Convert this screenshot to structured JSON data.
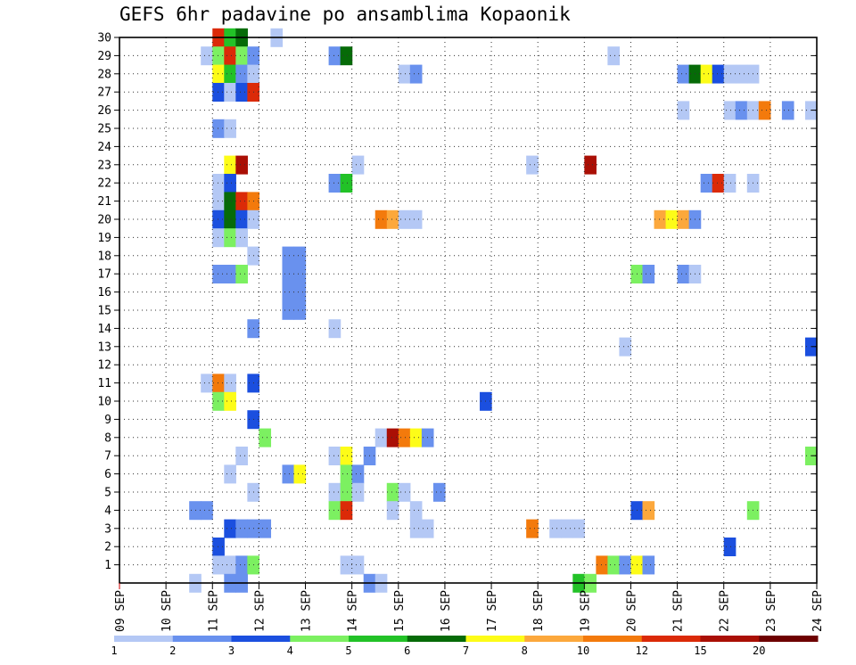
{
  "chart_data": {
    "type": "heatmap",
    "title": "GEFS 6hr padavine po ansamblima Kopaonik",
    "xlabel": "",
    "ylabel": "",
    "x_tick_labels": [
      "09 SEP",
      "10 SEP",
      "11 SEP",
      "12 SEP",
      "13 SEP",
      "14 SEP",
      "15 SEP",
      "16 SEP",
      "17 SEP",
      "18 SEP",
      "19 SEP",
      "20 SEP",
      "21 SEP",
      "22 SEP",
      "23 SEP",
      "24 SEP"
    ],
    "x_unit": "6h step",
    "xlim": [
      0,
      60
    ],
    "y_tick_labels": [
      "1",
      "2",
      "3",
      "4",
      "5",
      "6",
      "7",
      "8",
      "9",
      "10",
      "11",
      "12",
      "13",
      "14",
      "15",
      "16",
      "17",
      "18",
      "19",
      "20",
      "21",
      "22",
      "23",
      "24",
      "25",
      "26",
      "27",
      "28",
      "29",
      "30"
    ],
    "ylim": [
      0,
      30
    ],
    "grid": "dotted",
    "colorbar": {
      "boundaries": [
        1,
        2,
        3,
        4,
        5,
        6,
        7,
        8,
        10,
        12,
        15,
        20
      ],
      "labels": [
        "1",
        "2",
        "3",
        "4",
        "5",
        "6",
        "7",
        "8",
        "10",
        "12",
        "15",
        "20"
      ],
      "colors": [
        "#b4c8f5",
        "#6991ee",
        "#1b4fdf",
        "#7cf061",
        "#22c227",
        "#066b08",
        "#fdfc18",
        "#fca83c",
        "#f37a0c",
        "#db2a08",
        "#aa0f05",
        "#6e0000"
      ]
    },
    "cells": [
      {
        "x": 8,
        "y": 30,
        "v": 12
      },
      {
        "x": 9,
        "y": 30,
        "v": 5
      },
      {
        "x": 10,
        "y": 30,
        "v": 6
      },
      {
        "x": 13,
        "y": 30,
        "v": 1
      },
      {
        "x": 7,
        "y": 29,
        "v": 1
      },
      {
        "x": 8,
        "y": 29,
        "v": 4
      },
      {
        "x": 9,
        "y": 29,
        "v": 12
      },
      {
        "x": 10,
        "y": 29,
        "v": 4
      },
      {
        "x": 11,
        "y": 29,
        "v": 2
      },
      {
        "x": 18,
        "y": 29,
        "v": 2
      },
      {
        "x": 19,
        "y": 29,
        "v": 6
      },
      {
        "x": 42,
        "y": 29,
        "v": 1
      },
      {
        "x": 8,
        "y": 28,
        "v": 7
      },
      {
        "x": 9,
        "y": 28,
        "v": 5
      },
      {
        "x": 10,
        "y": 28,
        "v": 2
      },
      {
        "x": 11,
        "y": 28,
        "v": 1
      },
      {
        "x": 24,
        "y": 28,
        "v": 1
      },
      {
        "x": 25,
        "y": 28,
        "v": 2
      },
      {
        "x": 48,
        "y": 28,
        "v": 2
      },
      {
        "x": 49,
        "y": 28,
        "v": 6
      },
      {
        "x": 50,
        "y": 28,
        "v": 7
      },
      {
        "x": 51,
        "y": 28,
        "v": 3
      },
      {
        "x": 52,
        "y": 28,
        "v": 1
      },
      {
        "x": 53,
        "y": 28,
        "v": 1
      },
      {
        "x": 54,
        "y": 28,
        "v": 1
      },
      {
        "x": 8,
        "y": 27,
        "v": 3
      },
      {
        "x": 9,
        "y": 27,
        "v": 1
      },
      {
        "x": 10,
        "y": 27,
        "v": 3
      },
      {
        "x": 11,
        "y": 27,
        "v": 12
      },
      {
        "x": 48,
        "y": 26,
        "v": 1
      },
      {
        "x": 52,
        "y": 26,
        "v": 1
      },
      {
        "x": 53,
        "y": 26,
        "v": 2
      },
      {
        "x": 54,
        "y": 26,
        "v": 1
      },
      {
        "x": 55,
        "y": 26,
        "v": 10
      },
      {
        "x": 57,
        "y": 26,
        "v": 2
      },
      {
        "x": 59,
        "y": 26,
        "v": 1
      },
      {
        "x": 8,
        "y": 25,
        "v": 2
      },
      {
        "x": 9,
        "y": 25,
        "v": 1
      },
      {
        "x": 9,
        "y": 23,
        "v": 7
      },
      {
        "x": 10,
        "y": 23,
        "v": 15
      },
      {
        "x": 20,
        "y": 23,
        "v": 1
      },
      {
        "x": 35,
        "y": 23,
        "v": 1
      },
      {
        "x": 40,
        "y": 23,
        "v": 15
      },
      {
        "x": 8,
        "y": 22,
        "v": 1
      },
      {
        "x": 9,
        "y": 22,
        "v": 3
      },
      {
        "x": 18,
        "y": 22,
        "v": 2
      },
      {
        "x": 19,
        "y": 22,
        "v": 5
      },
      {
        "x": 50,
        "y": 22,
        "v": 2
      },
      {
        "x": 51,
        "y": 22,
        "v": 12
      },
      {
        "x": 52,
        "y": 22,
        "v": 1
      },
      {
        "x": 54,
        "y": 22,
        "v": 1
      },
      {
        "x": 8,
        "y": 21,
        "v": 1
      },
      {
        "x": 9,
        "y": 21,
        "v": 6
      },
      {
        "x": 10,
        "y": 21,
        "v": 12
      },
      {
        "x": 11,
        "y": 21,
        "v": 10
      },
      {
        "x": 8,
        "y": 20,
        "v": 3
      },
      {
        "x": 9,
        "y": 20,
        "v": 6
      },
      {
        "x": 10,
        "y": 20,
        "v": 3
      },
      {
        "x": 11,
        "y": 20,
        "v": 1
      },
      {
        "x": 22,
        "y": 20,
        "v": 10
      },
      {
        "x": 23,
        "y": 20,
        "v": 8
      },
      {
        "x": 24,
        "y": 20,
        "v": 1
      },
      {
        "x": 25,
        "y": 20,
        "v": 1
      },
      {
        "x": 46,
        "y": 20,
        "v": 8
      },
      {
        "x": 47,
        "y": 20,
        "v": 7
      },
      {
        "x": 48,
        "y": 20,
        "v": 8
      },
      {
        "x": 49,
        "y": 20,
        "v": 2
      },
      {
        "x": 8,
        "y": 19,
        "v": 1
      },
      {
        "x": 9,
        "y": 19,
        "v": 4
      },
      {
        "x": 10,
        "y": 19,
        "v": 1
      },
      {
        "x": 11,
        "y": 18,
        "v": 1
      },
      {
        "x": 14,
        "y": 18,
        "v": 2
      },
      {
        "x": 15,
        "y": 18,
        "v": 2
      },
      {
        "x": 8,
        "y": 17,
        "v": 2
      },
      {
        "x": 9,
        "y": 17,
        "v": 2
      },
      {
        "x": 10,
        "y": 17,
        "v": 4
      },
      {
        "x": 14,
        "y": 17,
        "v": 2
      },
      {
        "x": 15,
        "y": 17,
        "v": 2
      },
      {
        "x": 44,
        "y": 17,
        "v": 4
      },
      {
        "x": 45,
        "y": 17,
        "v": 2
      },
      {
        "x": 48,
        "y": 17,
        "v": 2
      },
      {
        "x": 49,
        "y": 17,
        "v": 1
      },
      {
        "x": 14,
        "y": 16,
        "v": 2
      },
      {
        "x": 15,
        "y": 16,
        "v": 2
      },
      {
        "x": 14,
        "y": 15,
        "v": 2
      },
      {
        "x": 15,
        "y": 15,
        "v": 2
      },
      {
        "x": 11,
        "y": 14,
        "v": 2
      },
      {
        "x": 18,
        "y": 14,
        "v": 1
      },
      {
        "x": 43,
        "y": 13,
        "v": 1
      },
      {
        "x": 59,
        "y": 13,
        "v": 3
      },
      {
        "x": 7,
        "y": 11,
        "v": 1
      },
      {
        "x": 8,
        "y": 11,
        "v": 10
      },
      {
        "x": 9,
        "y": 11,
        "v": 1
      },
      {
        "x": 11,
        "y": 11,
        "v": 3
      },
      {
        "x": 8,
        "y": 10,
        "v": 4
      },
      {
        "x": 9,
        "y": 10,
        "v": 7
      },
      {
        "x": 31,
        "y": 10,
        "v": 3
      },
      {
        "x": 11,
        "y": 9,
        "v": 3
      },
      {
        "x": 12,
        "y": 8,
        "v": 4
      },
      {
        "x": 22,
        "y": 8,
        "v": 1
      },
      {
        "x": 23,
        "y": 8,
        "v": 15
      },
      {
        "x": 24,
        "y": 8,
        "v": 10
      },
      {
        "x": 25,
        "y": 8,
        "v": 7
      },
      {
        "x": 26,
        "y": 8,
        "v": 2
      },
      {
        "x": 10,
        "y": 7,
        "v": 1
      },
      {
        "x": 18,
        "y": 7,
        "v": 1
      },
      {
        "x": 19,
        "y": 7,
        "v": 7
      },
      {
        "x": 21,
        "y": 7,
        "v": 2
      },
      {
        "x": 59,
        "y": 7,
        "v": 4
      },
      {
        "x": 9,
        "y": 6,
        "v": 1
      },
      {
        "x": 14,
        "y": 6,
        "v": 2
      },
      {
        "x": 15,
        "y": 6,
        "v": 7
      },
      {
        "x": 19,
        "y": 6,
        "v": 4
      },
      {
        "x": 20,
        "y": 6,
        "v": 2
      },
      {
        "x": 11,
        "y": 5,
        "v": 1
      },
      {
        "x": 18,
        "y": 5,
        "v": 1
      },
      {
        "x": 19,
        "y": 5,
        "v": 4
      },
      {
        "x": 20,
        "y": 5,
        "v": 1
      },
      {
        "x": 23,
        "y": 5,
        "v": 4
      },
      {
        "x": 24,
        "y": 5,
        "v": 1
      },
      {
        "x": 27,
        "y": 5,
        "v": 2
      },
      {
        "x": 6,
        "y": 4,
        "v": 2
      },
      {
        "x": 7,
        "y": 4,
        "v": 2
      },
      {
        "x": 18,
        "y": 4,
        "v": 4
      },
      {
        "x": 19,
        "y": 4,
        "v": 12
      },
      {
        "x": 23,
        "y": 4,
        "v": 1
      },
      {
        "x": 25,
        "y": 4,
        "v": 1
      },
      {
        "x": 44,
        "y": 4,
        "v": 3
      },
      {
        "x": 45,
        "y": 4,
        "v": 8
      },
      {
        "x": 54,
        "y": 4,
        "v": 4
      },
      {
        "x": 9,
        "y": 3,
        "v": 3
      },
      {
        "x": 10,
        "y": 3,
        "v": 2
      },
      {
        "x": 11,
        "y": 3,
        "v": 2
      },
      {
        "x": 12,
        "y": 3,
        "v": 2
      },
      {
        "x": 25,
        "y": 3,
        "v": 1
      },
      {
        "x": 26,
        "y": 3,
        "v": 1
      },
      {
        "x": 35,
        "y": 3,
        "v": 10
      },
      {
        "x": 37,
        "y": 3,
        "v": 1
      },
      {
        "x": 38,
        "y": 3,
        "v": 1
      },
      {
        "x": 39,
        "y": 3,
        "v": 1
      },
      {
        "x": 8,
        "y": 2,
        "v": 3
      },
      {
        "x": 52,
        "y": 2,
        "v": 3
      },
      {
        "x": 8,
        "y": 1,
        "v": 1
      },
      {
        "x": 9,
        "y": 1,
        "v": 1
      },
      {
        "x": 10,
        "y": 1,
        "v": 2
      },
      {
        "x": 11,
        "y": 1,
        "v": 4
      },
      {
        "x": 19,
        "y": 1,
        "v": 1
      },
      {
        "x": 20,
        "y": 1,
        "v": 1
      },
      {
        "x": 41,
        "y": 1,
        "v": 10
      },
      {
        "x": 42,
        "y": 1,
        "v": 4
      },
      {
        "x": 43,
        "y": 1,
        "v": 2
      },
      {
        "x": 44,
        "y": 1,
        "v": 7
      },
      {
        "x": 45,
        "y": 1,
        "v": 2
      },
      {
        "x": 6,
        "y": 0,
        "v": 1
      },
      {
        "x": 9,
        "y": 0,
        "v": 2
      },
      {
        "x": 10,
        "y": 0,
        "v": 2
      },
      {
        "x": 21,
        "y": 0,
        "v": 2
      },
      {
        "x": 22,
        "y": 0,
        "v": 1
      },
      {
        "x": 39,
        "y": 0,
        "v": 5
      },
      {
        "x": 40,
        "y": 0,
        "v": 4
      }
    ]
  }
}
